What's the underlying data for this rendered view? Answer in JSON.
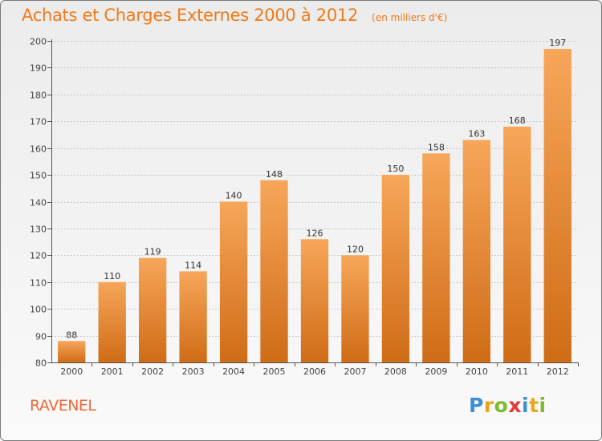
{
  "header": {
    "title": "Achats et Charges Externes 2000 à 2012",
    "unit": "(en milliers d'€)"
  },
  "footer": {
    "commune": "RAVENEL",
    "logo": {
      "letters": [
        "P",
        "r",
        "o",
        "x",
        "i",
        "t",
        "i"
      ],
      "colors": [
        "#3b8fd6",
        "#e8a522",
        "#7dbb2a",
        "#e23b3b",
        "#3b8fd6",
        "#e8a522",
        "#7dbb2a"
      ]
    }
  },
  "colors": {
    "accent": "#f07a1a",
    "bar_light": "#f7a65a",
    "bar_dark": "#cf6c16",
    "axis": "#555555",
    "grid": "#c8c8c8"
  },
  "chart_data": {
    "type": "bar",
    "title": "Achats et Charges Externes 2000 à 2012",
    "subtitle": "(en milliers d'€)",
    "categories": [
      "2000",
      "2001",
      "2002",
      "2003",
      "2004",
      "2005",
      "2006",
      "2007",
      "2008",
      "2009",
      "2010",
      "2011",
      "2012"
    ],
    "values": [
      88,
      110,
      119,
      114,
      140,
      148,
      126,
      120,
      150,
      158,
      163,
      168,
      197
    ],
    "ylim": [
      80,
      200
    ],
    "yticks": [
      80,
      90,
      100,
      110,
      120,
      130,
      140,
      150,
      160,
      170,
      180,
      190,
      200
    ],
    "grid": true,
    "data_labels": true
  }
}
